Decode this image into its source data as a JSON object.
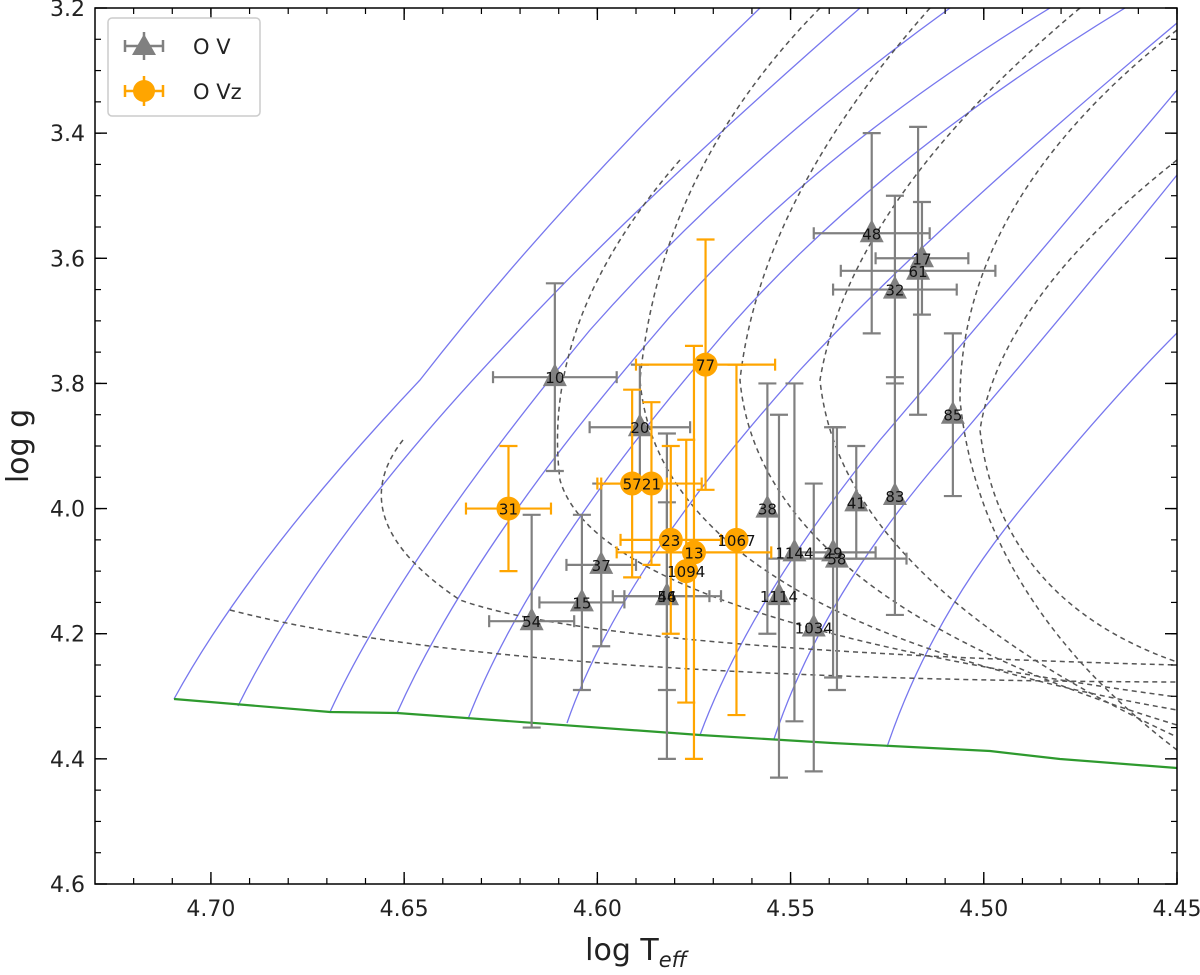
{
  "chart_data": {
    "type": "scatter",
    "xlabel_main": "log T",
    "xlabel_sub": "eff",
    "ylabel": "log g",
    "xlim": [
      4.73,
      4.45
    ],
    "ylim": [
      4.6,
      3.2
    ],
    "xticks": [
      "4.70",
      "4.65",
      "4.60",
      "4.55",
      "4.50",
      "4.45"
    ],
    "xtick_values": [
      4.7,
      4.65,
      4.6,
      4.55,
      4.5,
      4.45
    ],
    "yticks": [
      "3.2",
      "3.4",
      "3.6",
      "3.8",
      "4.0",
      "4.2",
      "4.4",
      "4.6"
    ],
    "ytick_values": [
      3.2,
      3.4,
      3.6,
      3.8,
      4.0,
      4.2,
      4.4,
      4.6
    ],
    "legend": [
      {
        "label": "O V",
        "marker": "triangle",
        "color": "#808080"
      },
      {
        "label": "O Vz",
        "marker": "circle",
        "color": "#FFA500"
      }
    ],
    "colors": {
      "ov": "#808080",
      "ovz": "#FFA500",
      "tracks": "#7777ee",
      "isochrones": "#555555",
      "zams": "#2e9a2e"
    },
    "series": [
      {
        "name": "O V",
        "points": [
          {
            "id": "10",
            "x": 4.611,
            "y": 3.79,
            "xerr": 0.016,
            "yerr": 0.15
          },
          {
            "id": "48",
            "x": 4.529,
            "y": 3.56,
            "xerr": 0.015,
            "yerr": 0.16
          },
          {
            "id": "17",
            "x": 4.516,
            "y": 3.6,
            "xerr": 0.012,
            "yerr": 0.09
          },
          {
            "id": "61",
            "x": 4.517,
            "y": 3.62,
            "xerr": 0.02,
            "yerr": 0.23
          },
          {
            "id": "32",
            "x": 4.523,
            "y": 3.65,
            "xerr": 0.016,
            "yerr": 0.15
          },
          {
            "id": "85",
            "x": 4.508,
            "y": 3.85,
            "xerr": 0.0,
            "yerr": 0.13
          },
          {
            "id": "20",
            "x": 4.589,
            "y": 3.87,
            "xerr": 0.013,
            "yerr": 0.1
          },
          {
            "id": "38",
            "x": 4.556,
            "y": 4.0,
            "xerr": 0.0,
            "yerr": 0.2
          },
          {
            "id": "41",
            "x": 4.533,
            "y": 3.99,
            "xerr": 0.0,
            "yerr": 0.09
          },
          {
            "id": "83",
            "x": 4.523,
            "y": 3.98,
            "xerr": 0.0,
            "yerr": 0.19
          },
          {
            "id": "37",
            "x": 4.599,
            "y": 4.09,
            "xerr": 0.009,
            "yerr": 0.13
          },
          {
            "id": "15",
            "x": 4.604,
            "y": 4.15,
            "xerr": 0.011,
            "yerr": 0.14
          },
          {
            "id": "54",
            "x": 4.617,
            "y": 4.18,
            "xerr": 0.011,
            "yerr": 0.17
          },
          {
            "id": "44",
            "x": 4.582,
            "y": 4.14,
            "xerr": 0.011,
            "yerr": 0.15
          },
          {
            "id": "56",
            "x": 4.582,
            "y": 4.14,
            "xerr": 0.014,
            "yerr": 0.26
          },
          {
            "id": "1144",
            "x": 4.549,
            "y": 4.07,
            "xerr": 0.0,
            "yerr": 0.27
          },
          {
            "id": "29",
            "x": 4.539,
            "y": 4.07,
            "xerr": 0.011,
            "yerr": 0.2
          },
          {
            "id": "58",
            "x": 4.538,
            "y": 4.08,
            "xerr": 0.018,
            "yerr": 0.21
          },
          {
            "id": "1114",
            "x": 4.553,
            "y": 4.14,
            "xerr": 0.0,
            "yerr": 0.29
          },
          {
            "id": "1034",
            "x": 4.544,
            "y": 4.19,
            "xerr": 0.0,
            "yerr": 0.23
          }
        ]
      },
      {
        "name": "O Vz",
        "points": [
          {
            "id": "31",
            "x": 4.623,
            "y": 4.0,
            "xerr": 0.011,
            "yerr": 0.1
          },
          {
            "id": "57",
            "x": 4.591,
            "y": 3.96,
            "xerr": 0.009,
            "yerr": 0.15
          },
          {
            "id": "21",
            "x": 4.586,
            "y": 3.96,
            "xerr": 0.013,
            "yerr": 0.13
          },
          {
            "id": "77",
            "x": 4.572,
            "y": 3.77,
            "xerr": 0.018,
            "yerr": 0.2
          },
          {
            "id": "1067",
            "x": 4.564,
            "y": 4.05,
            "xerr": 0.0,
            "yerr": 0.28
          },
          {
            "id": "23",
            "x": 4.581,
            "y": 4.05,
            "xerr": 0.013,
            "yerr": 0.15
          },
          {
            "id": "13",
            "x": 4.575,
            "y": 4.07,
            "xerr": 0.02,
            "yerr": 0.33
          },
          {
            "id": "1094",
            "x": 4.577,
            "y": 4.1,
            "xerr": 0.0,
            "yerr": 0.21
          }
        ]
      }
    ]
  }
}
